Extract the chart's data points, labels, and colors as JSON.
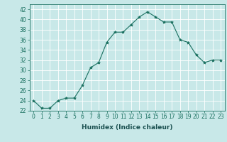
{
  "xlabel": "Humidex (Indice chaleur)",
  "ylabel": "",
  "x_values": [
    0,
    1,
    2,
    3,
    4,
    5,
    6,
    7,
    8,
    9,
    10,
    11,
    12,
    13,
    14,
    15,
    16,
    17,
    18,
    19,
    20,
    21,
    22,
    23
  ],
  "y_values": [
    24,
    22.5,
    22.5,
    24,
    24.5,
    24.5,
    27,
    30.5,
    31.5,
    35.5,
    37.5,
    37.5,
    39,
    40.5,
    41.5,
    40.5,
    39.5,
    39.5,
    36,
    35.5,
    33,
    31.5,
    32,
    32
  ],
  "ylim": [
    22,
    43
  ],
  "xlim": [
    -0.5,
    23.5
  ],
  "yticks": [
    22,
    24,
    26,
    28,
    30,
    32,
    34,
    36,
    38,
    40,
    42
  ],
  "xticks": [
    0,
    1,
    2,
    3,
    4,
    5,
    6,
    7,
    8,
    9,
    10,
    11,
    12,
    13,
    14,
    15,
    16,
    17,
    18,
    19,
    20,
    21,
    22,
    23
  ],
  "line_color": "#1a7060",
  "marker": "*",
  "marker_size": 3,
  "bg_color": "#c8e8e8",
  "grid_color": "#ffffff",
  "label_fontsize": 6.5,
  "tick_fontsize": 5.5
}
